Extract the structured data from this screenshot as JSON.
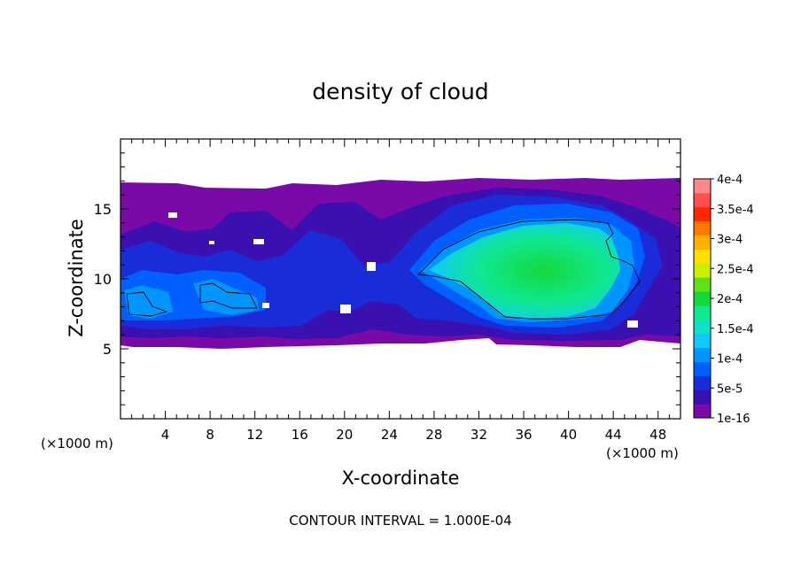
{
  "chart_data": {
    "type": "heatmap",
    "title": "density of cloud",
    "xlabel": "X-coordinate",
    "ylabel": "Z-coordinate",
    "x_unit_left": "(×1000 m)",
    "x_unit_right": "(×1000 m)",
    "footer": "CONTOUR INTERVAL = 1.000E-04",
    "xlim": [
      0,
      50
    ],
    "ylim": [
      0,
      20
    ],
    "x_ticks": [
      4,
      8,
      12,
      16,
      20,
      24,
      28,
      32,
      36,
      40,
      44,
      48
    ],
    "x_tick_labels": [
      "4",
      "8",
      "12",
      "16",
      "20",
      "24",
      "28",
      "32",
      "36",
      "40",
      "44",
      "48"
    ],
    "y_ticks": [
      5,
      10,
      15
    ],
    "y_tick_labels": [
      "5",
      "10",
      "15"
    ],
    "colorbar": {
      "labels": [
        "1e-16",
        "5e-5",
        "1e-4",
        "1.5e-4",
        "2e-4",
        "2.5e-4",
        "3e-4",
        "3.5e-4",
        "4e-4"
      ],
      "colors": [
        "#7a0aa8",
        "#3a10b0",
        "#1a2cd8",
        "#0060ff",
        "#0096ff",
        "#10c8ff",
        "#10e0c8",
        "#10e890",
        "#14d83c",
        "#60e018",
        "#c8f000",
        "#ffe000",
        "#ffb000",
        "#ff7800",
        "#ff2800",
        "#ff5050",
        "#ff8888"
      ]
    },
    "cloud_region": {
      "x": [
        0,
        50
      ],
      "z": [
        5.2,
        17.0
      ]
    },
    "features": [
      {
        "name": "main cloud core",
        "x": [
          26.5,
          44.5
        ],
        "z": [
          6.8,
          14.0
        ],
        "peak": 0.00018
      },
      {
        "name": "left cell A",
        "x": [
          0.3,
          4.2
        ],
        "z": [
          7.2,
          9.0
        ],
        "peak": 0.00011
      },
      {
        "name": "left cell B",
        "x": [
          7.0,
          12.5
        ],
        "z": [
          7.8,
          9.6
        ],
        "peak": 0.000105
      }
    ]
  }
}
